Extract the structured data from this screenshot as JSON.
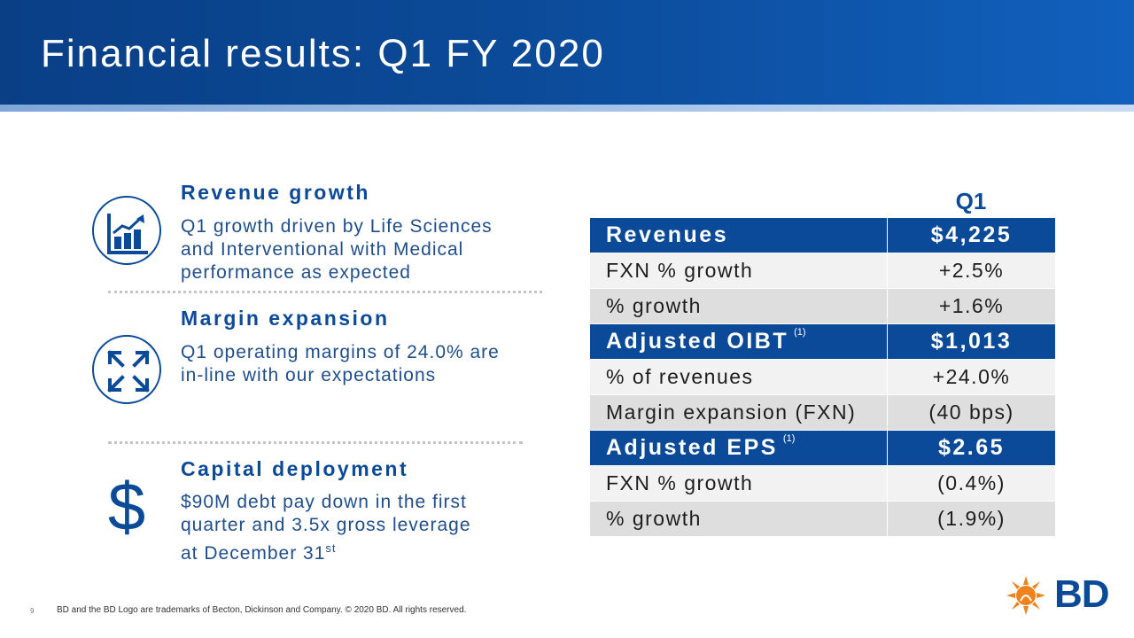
{
  "slide": {
    "title": "Financial results: Q1 FY 2020",
    "page_number": "9",
    "footer": "BD and the BD Logo are trademarks of Becton, Dickinson and Company. © 2020 BD. All rights reserved.",
    "logo_text": "BD"
  },
  "sections": [
    {
      "icon": "bar-chart-growth-icon",
      "heading": "Revenue growth",
      "lines": [
        "Q1 growth driven by Life Sciences",
        "and Interventional with Medical",
        "performance as expected"
      ]
    },
    {
      "icon": "expand-arrows-icon",
      "heading": "Margin expansion",
      "lines": [
        "Q1 operating margins of 24.0% are",
        "in-line with our expectations"
      ]
    },
    {
      "icon": "dollar-icon",
      "heading": "Capital deployment",
      "lines": [
        "$90M debt pay down in the first",
        "quarter and 3.5x gross leverage",
        "at December 31"
      ],
      "superscript": "st",
      "symbol": "$"
    }
  ],
  "table": {
    "column_header": "Q1",
    "rows": [
      {
        "label": "Revenues",
        "value": "$4,225",
        "style": "header"
      },
      {
        "label": "FXN % growth",
        "value": "+2.5%",
        "style": "light"
      },
      {
        "label": "% growth",
        "value": "+1.6%",
        "style": "dark"
      },
      {
        "label": "Adjusted OIBT",
        "footnote": "(1)",
        "value": "$1,013",
        "style": "header"
      },
      {
        "label": "% of revenues",
        "value": "+24.0%",
        "style": "light"
      },
      {
        "label": "Margin expansion (FXN)",
        "value": "(40 bps)",
        "style": "dark"
      },
      {
        "label": "Adjusted EPS",
        "footnote": "(1)",
        "value": "$2.65",
        "style": "header"
      },
      {
        "label": "FXN % growth",
        "value": "(0.4%)",
        "style": "light"
      },
      {
        "label": "% growth",
        "value": "(1.9%)",
        "style": "dark"
      }
    ]
  },
  "colors": {
    "brand_blue": "#0b4a98",
    "logo_orange": "#f0821e"
  }
}
